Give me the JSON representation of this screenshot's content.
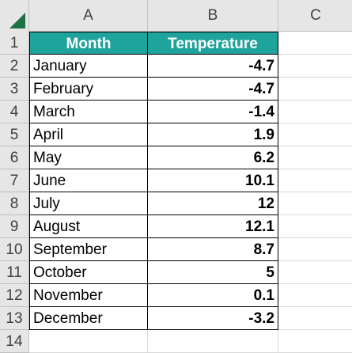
{
  "sheet": {
    "corner_icon": "select-all-triangle-icon",
    "accent_color": "#1fa39d",
    "columns": [
      "A",
      "B",
      "C"
    ],
    "row_numbers": [
      "1",
      "2",
      "3",
      "4",
      "5",
      "6",
      "7",
      "8",
      "9",
      "10",
      "11",
      "12",
      "13",
      "14"
    ],
    "table": {
      "headers": {
        "month": "Month",
        "temperature": "Temperature"
      },
      "rows": [
        {
          "month": "January",
          "temperature": "-4.7"
        },
        {
          "month": "February",
          "temperature": "-4.7"
        },
        {
          "month": "March",
          "temperature": "-1.4"
        },
        {
          "month": "April",
          "temperature": "1.9"
        },
        {
          "month": "May",
          "temperature": "6.2"
        },
        {
          "month": "June",
          "temperature": "10.1"
        },
        {
          "month": "July",
          "temperature": "12"
        },
        {
          "month": "August",
          "temperature": "12.1"
        },
        {
          "month": "September",
          "temperature": "8.7"
        },
        {
          "month": "October",
          "temperature": "5"
        },
        {
          "month": "November",
          "temperature": "0.1"
        },
        {
          "month": "December",
          "temperature": "-3.2"
        }
      ]
    }
  }
}
